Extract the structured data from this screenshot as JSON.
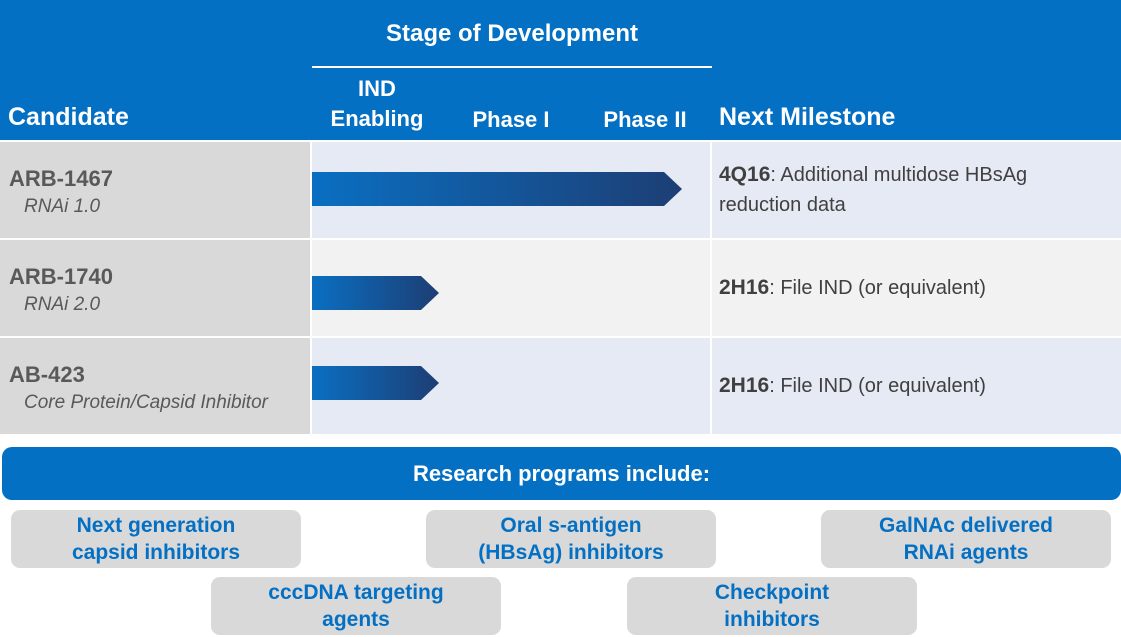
{
  "header": {
    "stage_title": "Stage of Development",
    "candidate_label": "Candidate",
    "stage_ind_line1": "IND",
    "stage_ind_line2": "Enabling",
    "stage_phase1": "Phase I",
    "stage_phase2": "Phase II",
    "milestone_label": "Next Milestone"
  },
  "candidates": [
    {
      "name": "ARB-1467",
      "subtitle": "RNAi 1.0",
      "stage_reached": "Phase II",
      "progress_fraction": 0.93,
      "milestone_code": "4Q16",
      "milestone_text": ": Additional multidose HBsAg reduction data"
    },
    {
      "name": "ARB-1740",
      "subtitle": "RNAi 2.0",
      "stage_reached": "IND Enabling",
      "progress_fraction": 0.32,
      "milestone_code": "2H16",
      "milestone_text": ": File IND (or equivalent)"
    },
    {
      "name": "AB-423",
      "subtitle": "Core Protein/Capsid Inhibitor",
      "stage_reached": "IND Enabling",
      "progress_fraction": 0.32,
      "milestone_code": "2H16",
      "milestone_text": ": File IND (or equivalent)"
    }
  ],
  "research": {
    "title": "Research programs include:",
    "programs": [
      {
        "line1": "Next generation",
        "line2": "capsid inhibitors"
      },
      {
        "line1": "Oral s-antigen",
        "line2": "(HBsAg) inhibitors"
      },
      {
        "line1": "GalNAc delivered",
        "line2": "RNAi agents"
      },
      {
        "line1": "cccDNA targeting",
        "line2": "agents"
      },
      {
        "line1": "Checkpoint",
        "line2": "inhibitors"
      }
    ]
  },
  "colors": {
    "header_blue": "#0470c4",
    "arrow_start": "#0a6fc2",
    "arrow_end": "#1d3e74",
    "program_text": "#0470c4",
    "cell_gray": "#d9d9d9"
  }
}
